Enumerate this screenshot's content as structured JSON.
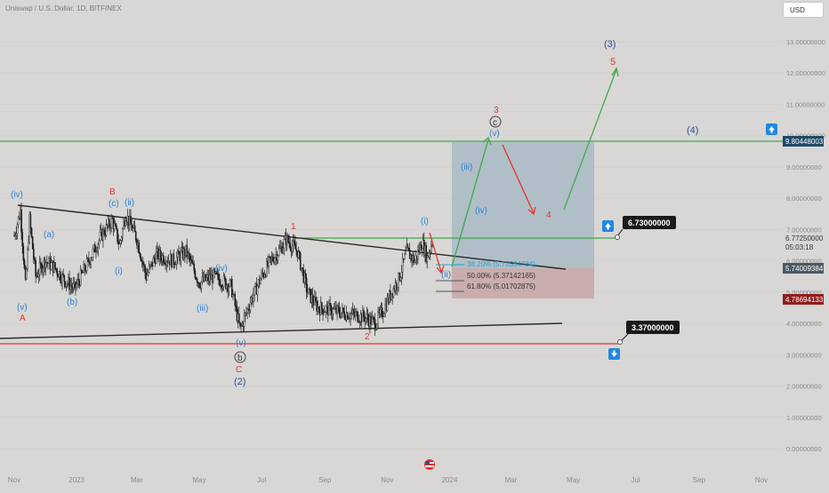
{
  "header": {
    "symbol_title": "Uniswap / U.S. Dollar, 1D, BITFINEX",
    "currency_button": "USD"
  },
  "colors": {
    "background": "#d8d7d5",
    "candle": "#1c1c1c",
    "wave_blue": "#2e7fd4",
    "wave_red": "#e8302c",
    "line_green": "#3fa84a",
    "trend_black": "#2a2a2a",
    "support_red": "#e8302c",
    "box_blue": "#a9bbc4",
    "box_pink": "#c9a9a9",
    "fib_blue": "#2a9fd0"
  },
  "chart_data": {
    "type": "candlestick",
    "ylim": [
      0,
      13
    ],
    "y_ticks": [
      "0.00000000",
      "1.00000000",
      "2.00000000",
      "3.00000000",
      "4.00000000",
      "5.00000000",
      "6.00000000",
      "7.00000000",
      "8.00000000",
      "9.00000000",
      "10.00000000",
      "11.00000000",
      "12.00000000",
      "13.00000000"
    ],
    "x_ticks": [
      "Nov",
      "2023",
      "Mar",
      "May",
      "Jul",
      "Sep",
      "Nov",
      "2024",
      "Mar",
      "May",
      "Jul",
      "Sep",
      "Nov"
    ],
    "price_points": [
      [
        "2022-11-01",
        6.8
      ],
      [
        "2022-11-07",
        7.6
      ],
      [
        "2022-11-12",
        5.2
      ],
      [
        "2022-11-16",
        7.3
      ],
      [
        "2022-11-22",
        5.5
      ],
      [
        "2022-12-01",
        6.0
      ],
      [
        "2022-12-10",
        5.8
      ],
      [
        "2022-12-20",
        5.4
      ],
      [
        "2022-12-30",
        5.1
      ],
      [
        "2023-01-10",
        5.8
      ],
      [
        "2023-01-25",
        6.8
      ],
      [
        "2023-02-05",
        7.3
      ],
      [
        "2023-02-12",
        6.5
      ],
      [
        "2023-02-18",
        7.5
      ],
      [
        "2023-03-01",
        6.7
      ],
      [
        "2023-03-10",
        5.5
      ],
      [
        "2023-03-20",
        6.2
      ],
      [
        "2023-04-05",
        6.0
      ],
      [
        "2023-04-18",
        6.3
      ],
      [
        "2023-05-01",
        5.3
      ],
      [
        "2023-05-15",
        5.5
      ],
      [
        "2023-06-01",
        5.2
      ],
      [
        "2023-06-10",
        3.8
      ],
      [
        "2023-06-20",
        4.7
      ],
      [
        "2023-07-01",
        5.5
      ],
      [
        "2023-07-10",
        6.0
      ],
      [
        "2023-07-20",
        6.4
      ],
      [
        "2023-07-25",
        6.7
      ],
      [
        "2023-08-05",
        6.3
      ],
      [
        "2023-08-15",
        5.0
      ],
      [
        "2023-08-25",
        4.5
      ],
      [
        "2023-09-10",
        4.4
      ],
      [
        "2023-09-25",
        4.3
      ],
      [
        "2023-10-10",
        4.2
      ],
      [
        "2023-10-20",
        4.0
      ],
      [
        "2023-10-28",
        4.4
      ],
      [
        "2023-11-05",
        5.0
      ],
      [
        "2023-11-12",
        5.4
      ],
      [
        "2023-11-20",
        6.3
      ],
      [
        "2023-11-28",
        6.0
      ],
      [
        "2023-12-05",
        6.6
      ],
      [
        "2023-12-10",
        6.1
      ],
      [
        "2023-12-15",
        6.6
      ]
    ]
  },
  "wave_labels": {
    "iv_left": "(iv)",
    "v_left": "(v)",
    "A": "A",
    "a": "(a)",
    "b": "(b)",
    "c": "(c)",
    "B": "B",
    "ii_top": "(ii)",
    "i_mid": "(i)",
    "iv_mid": "(iv)",
    "iii": "(iii)",
    "v_low": "(v)",
    "b_circle": "b",
    "C": "C",
    "wave2": "(2)",
    "wave1_red": "1",
    "wave2_red": "2",
    "i_right": "(i)",
    "ii_right": "(ii)",
    "iii_right": "(iii)",
    "iv_right": "(iv)",
    "v_right": "(v)",
    "c_circle": "c",
    "wave3_red": "3",
    "wave4_red": "4",
    "wave5_red": "5",
    "wave3_blue": "(3)",
    "wave4_blue": "(4)"
  },
  "fib_levels": [
    "38.20% (5.72584784)",
    "50.00% (5.37142165)",
    "61.80% (5.01702875)"
  ],
  "price_labels": {
    "green_line": "9.80448003",
    "upper_target": "6.73000000",
    "current_price": "6.77250000",
    "countdown": "05:03:18",
    "box_mid": "5.74009384",
    "stop_level": "4.78694133",
    "support_target": "3.37000000"
  },
  "icons": [
    "arrow-up-icon",
    "arrow-down-icon",
    "flag-icon"
  ]
}
